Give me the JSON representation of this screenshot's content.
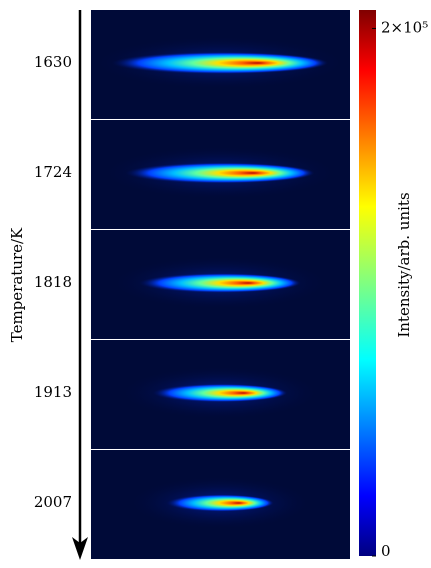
{
  "chart_data": {
    "type": "image-stack",
    "categories": [
      "1630",
      "1724",
      "1818",
      "1913",
      "2007"
    ],
    "ylabel": "Temperature/K",
    "colorbar_label": "Intensity/arb. units",
    "colormap": "jet",
    "clim": [
      0,
      207000
    ],
    "cticks": [
      0,
      {
        "value": 200000,
        "label": "2×10⁵"
      }
    ]
  }
}
